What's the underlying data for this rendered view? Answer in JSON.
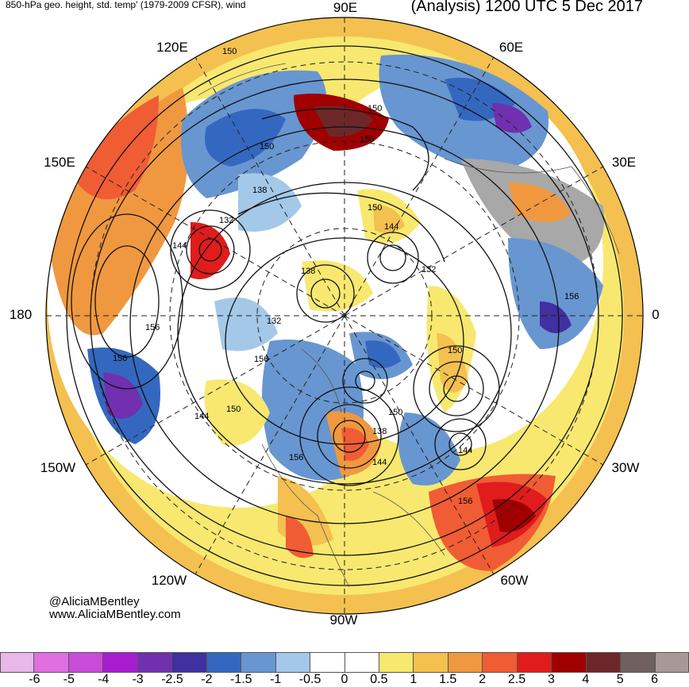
{
  "header": {
    "left_title": "850-hPa geo. height, std. temp' (1979-2009 CFSR), wind",
    "right_title": "(Analysis) 1200 UTC 5 Dec 2017"
  },
  "longitude_labels": {
    "lon_90e": "90E",
    "lon_120e": "120E",
    "lon_60e": "60E",
    "lon_150e": "150E",
    "lon_30e": "30E",
    "lon_180": "180",
    "lon_0": "0",
    "lon_150w": "150W",
    "lon_30w": "30W",
    "lon_120w": "120W",
    "lon_60w": "60W",
    "lon_90w": "90W"
  },
  "contour_labels": [
    {
      "id": "c1",
      "text": "150"
    },
    {
      "id": "c2",
      "text": "150"
    },
    {
      "id": "c3",
      "text": "150"
    },
    {
      "id": "c4",
      "text": "150"
    },
    {
      "id": "c5",
      "text": "138"
    },
    {
      "id": "c6",
      "text": "150"
    },
    {
      "id": "c7",
      "text": "132"
    },
    {
      "id": "c8",
      "text": "144"
    },
    {
      "id": "c9",
      "text": "144"
    },
    {
      "id": "c10",
      "text": "138"
    },
    {
      "id": "c11",
      "text": "132"
    },
    {
      "id": "c12",
      "text": "156"
    },
    {
      "id": "c13",
      "text": "132"
    },
    {
      "id": "c14",
      "text": "156"
    },
    {
      "id": "c15",
      "text": "156"
    },
    {
      "id": "c16",
      "text": "150"
    },
    {
      "id": "c17",
      "text": "156"
    },
    {
      "id": "c18",
      "text": "144"
    },
    {
      "id": "c19",
      "text": "150"
    },
    {
      "id": "c20",
      "text": "150"
    },
    {
      "id": "c21",
      "text": "138"
    },
    {
      "id": "c22",
      "text": "144"
    },
    {
      "id": "c23",
      "text": "156"
    },
    {
      "id": "c24",
      "text": "144"
    },
    {
      "id": "c25",
      "text": "156"
    }
  ],
  "credits": {
    "handle": "@AliciaMBentley",
    "website": "www.AliciaMBentley.com"
  },
  "colorbar": {
    "colors": [
      "#e8b8e8",
      "#e070e0",
      "#c84cd8",
      "#a81cd0",
      "#7030b0",
      "#4030a0",
      "#3468c0",
      "#6896d0",
      "#a4c8e8",
      "#ffffff",
      "#ffffff",
      "#f8e870",
      "#f4c050",
      "#f09840",
      "#f05c34",
      "#e01c1c",
      "#a00000",
      "#6c2828",
      "#706060",
      "#a89898"
    ],
    "ticks": [
      "-6",
      "-5",
      "-4",
      "-3",
      "-2.5",
      "-2",
      "-1.5",
      "-1",
      "-0.5",
      "0",
      "0.5",
      "1",
      "1.5",
      "2",
      "2.5",
      "3",
      "4",
      "5",
      "6"
    ]
  }
}
